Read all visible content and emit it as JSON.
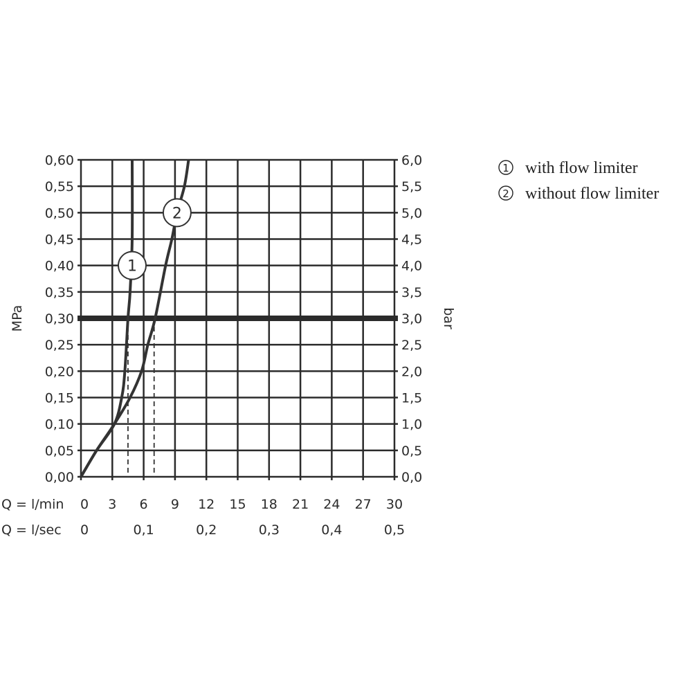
{
  "chart_data": {
    "type": "line",
    "xlabel": "Q = l/min",
    "xlabel2": "Q = l/sec",
    "ylabel": "MPa",
    "ylabel_right": "bar",
    "xlim": [
      0,
      30
    ],
    "ylim": [
      0,
      0.6
    ],
    "grid": true,
    "x_ticks": [
      "0",
      "3",
      "6",
      "9",
      "12",
      "15",
      "18",
      "21",
      "24",
      "27",
      "30"
    ],
    "x_tick_values": [
      0,
      3,
      6,
      9,
      12,
      15,
      18,
      21,
      24,
      27,
      30
    ],
    "x2_ticks": [
      "0",
      "0,1",
      "0,2",
      "0,3",
      "0,4",
      "0,5"
    ],
    "x2_tick_values": [
      0,
      6,
      12,
      18,
      24,
      30
    ],
    "y_ticks": [
      "0,00",
      "0,05",
      "0,10",
      "0,15",
      "0,20",
      "0,25",
      "0,30",
      "0,35",
      "0,40",
      "0,45",
      "0,50",
      "0,55",
      "0,60"
    ],
    "y_right_ticks": [
      "0,0",
      "0,5",
      "1,0",
      "1,5",
      "2,0",
      "2,5",
      "3,0",
      "3,5",
      "4,0",
      "4,5",
      "5,0",
      "5,5",
      "6,0"
    ],
    "reference_line": {
      "y": 0.3
    },
    "reference_drops": [
      4.5,
      7.0
    ],
    "series": [
      {
        "name": "with flow limiter",
        "marker_label": "1",
        "marker_at": [
          4.9,
          0.4
        ],
        "x": [
          0,
          1.5,
          3.2,
          3.9,
          4.2,
          4.5,
          4.7,
          4.9,
          4.9
        ],
        "y": [
          0,
          0.05,
          0.1,
          0.15,
          0.2,
          0.3,
          0.35,
          0.45,
          0.6
        ]
      },
      {
        "name": "without flow limiter",
        "marker_label": "2",
        "marker_at": [
          9.2,
          0.5
        ],
        "x": [
          0,
          1.5,
          3.2,
          4.7,
          5.8,
          6.4,
          7.1,
          8.1,
          8.7,
          9.2,
          9.9,
          10.3
        ],
        "y": [
          0,
          0.05,
          0.1,
          0.15,
          0.2,
          0.25,
          0.3,
          0.4,
          0.45,
          0.5,
          0.55,
          0.6
        ]
      }
    ],
    "legend": [
      {
        "symbol": "①",
        "text": "with flow limiter"
      },
      {
        "symbol": "②",
        "text": "without flow limiter"
      }
    ],
    "legend_position": "right",
    "colors": {
      "line": "#333333",
      "grid": "#2b2b2b"
    }
  }
}
